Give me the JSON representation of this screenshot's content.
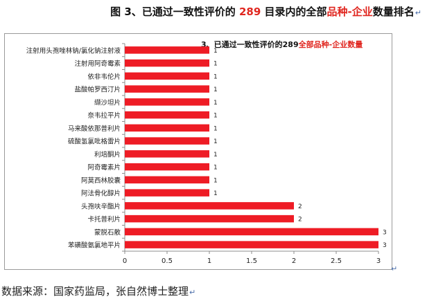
{
  "figure_title": {
    "prefix": "图 3、已通过一致性评价的 ",
    "number": "289",
    "middle": " 目录内的全部",
    "red_part": "品种-企业",
    "suffix": "数量排名",
    "para_mark": "↵"
  },
  "source_text": "数据来源：国家药监局，张自然博士整理",
  "para_mark": "↵",
  "chart_data": {
    "type": "bar",
    "orientation": "horizontal",
    "title_prefix": "3、已通过一致性评价的289",
    "title_red": "全部品种-企业数量",
    "categories": [
      "注射用头孢唑林钠/氯化钠注射液",
      "注射用阿奇霉素",
      "依非韦伦片",
      "盐酸帕罗西汀片",
      "缬沙坦片",
      "奈韦拉平片",
      "马来酸依那普利片",
      "硫酸氢氯吡格雷片",
      "利培酮片",
      "阿奇霉素片",
      "阿莫西林胶囊",
      "阿法骨化醇片",
      "头孢呋辛酯片",
      "卡托普利片",
      "蒙脱石散",
      "苯磺酸氨氯地平片"
    ],
    "values": [
      1,
      1,
      1,
      1,
      1,
      1,
      1,
      1,
      1,
      1,
      1,
      1,
      2,
      2,
      3,
      3
    ],
    "data_labels": [
      "1",
      "1",
      "1",
      "1",
      "1",
      "1",
      "1",
      "1",
      "1",
      "1",
      "1",
      "1",
      "2",
      "2",
      "3",
      "3"
    ],
    "xlim": [
      0,
      3
    ],
    "xticks": [
      "0",
      "0.5",
      "1",
      "1.5",
      "2",
      "2.5",
      "3"
    ],
    "bar_color": "#ee1c25",
    "title_red_color": "#e0261f",
    "grid": false,
    "legend": "none"
  }
}
